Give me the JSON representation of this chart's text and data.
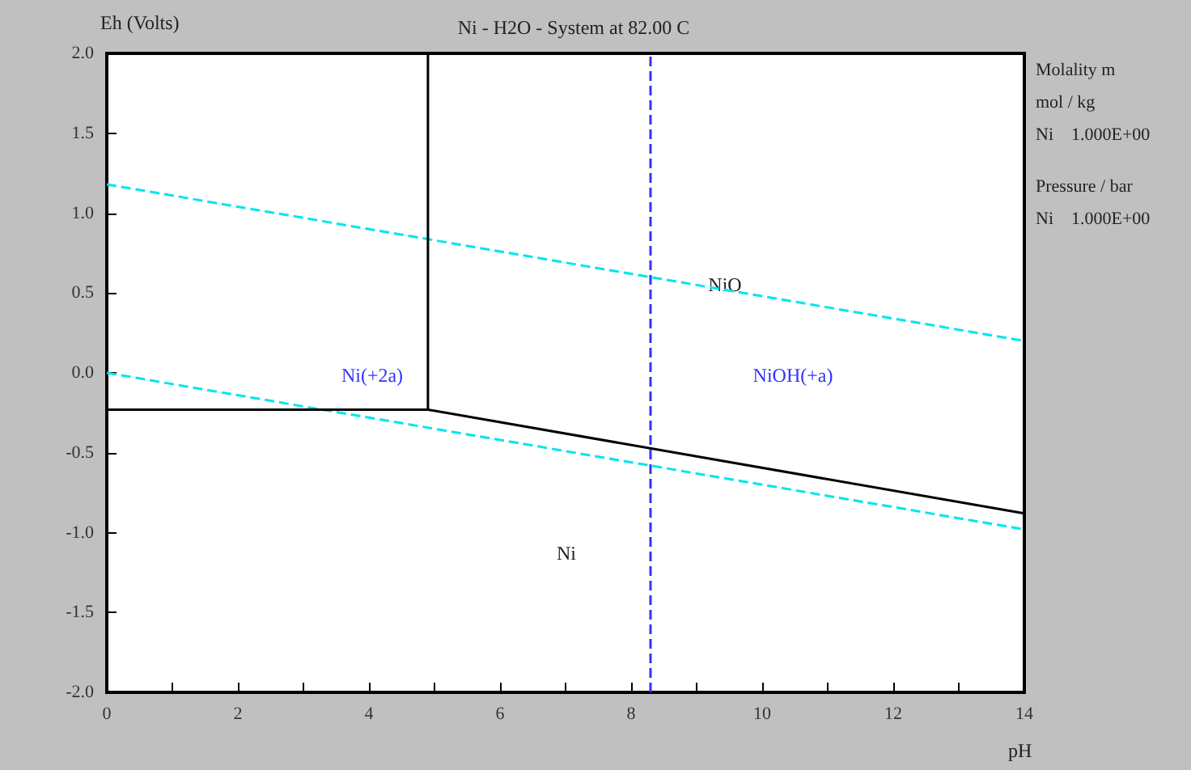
{
  "chart_data": {
    "type": "line",
    "title": "Ni - H2O - System at 82.00 C",
    "xlabel": "pH",
    "ylabel": "Eh (Volts)",
    "xlim": [
      0,
      14
    ],
    "ylim": [
      -2.0,
      2.0
    ],
    "xticks": [
      0,
      {
        "value": 1,
        "label": null
      },
      2,
      {
        "value": 3,
        "label": null
      },
      4,
      {
        "value": 5,
        "label": null
      },
      6,
      {
        "value": 7,
        "label": null
      },
      8,
      {
        "value": 9,
        "label": null
      },
      10,
      {
        "value": 11,
        "label": null
      },
      12,
      {
        "value": 13,
        "label": null
      },
      14
    ],
    "yticks": [
      {
        "value": -2.0,
        "label": "-2.0"
      },
      {
        "value": -1.5,
        "label": "-1.5"
      },
      {
        "value": -1.0,
        "label": "-1.0"
      },
      {
        "value": -0.5,
        "label": "-0.5"
      },
      {
        "value": 0,
        "label": "0.0"
      },
      {
        "value": 0.5,
        "label": "0.5"
      },
      {
        "value": 1.0,
        "label": "1.0"
      },
      {
        "value": 1.5,
        "label": "1.5"
      },
      {
        "value": 2.0,
        "label": "2.0"
      }
    ],
    "grid": false,
    "marker": "none",
    "line_style": "solid",
    "series": [
      {
        "color": "#00e5ee",
        "line_style": "dashed",
        "x": [
          0,
          14
        ],
        "values": [
          1.18,
          0.2
        ]
      },
      {
        "color": "#00e5ee",
        "line_style": "dashed",
        "x": [
          0,
          14
        ],
        "values": [
          0.0,
          -0.98
        ]
      },
      {
        "color": "#000000",
        "x": [
          0,
          4.9,
          14
        ],
        "values": [
          -0.23,
          -0.23,
          -0.88
        ]
      },
      {
        "color": "#000000",
        "x": [
          4.9,
          4.9
        ],
        "values": [
          -0.23,
          2.0
        ]
      }
    ],
    "ref_lines": [
      {
        "axis": "x",
        "value": 8.3,
        "color": "#3333ff",
        "line_style": "dashed"
      }
    ],
    "annotations": [
      "Ni(+2a)",
      "NiO",
      "NiOH(+a)",
      "Ni",
      "Molality m",
      "mol / kg",
      "Ni    1.000E+00",
      "Pressure / bar",
      "Ni    1.000E+00"
    ]
  }
}
